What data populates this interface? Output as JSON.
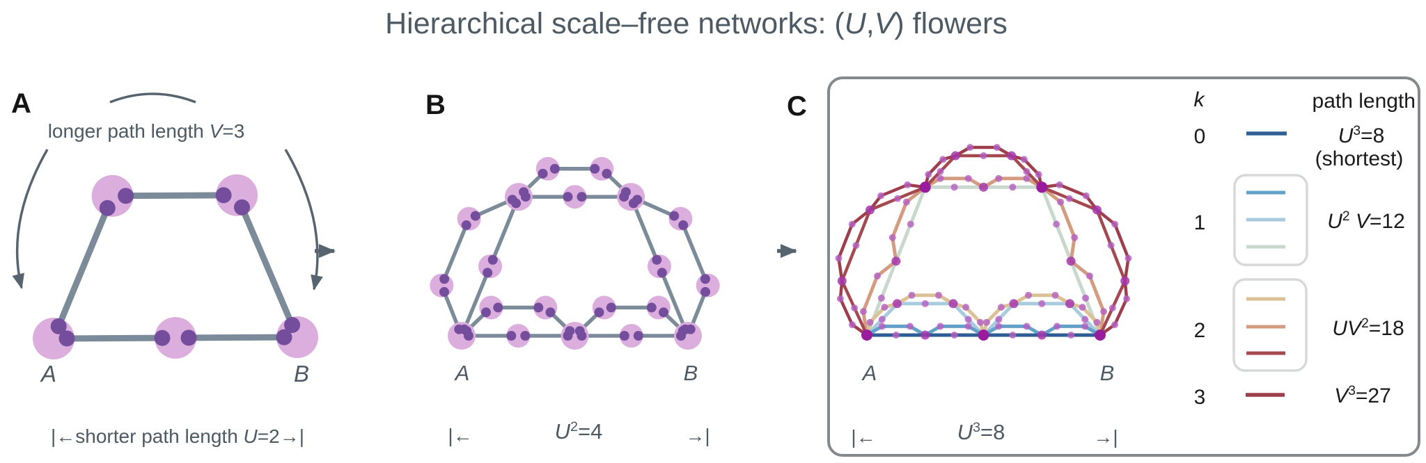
{
  "title": {
    "segments": [
      [
        "Hierarchical scale–free networks: (",
        0,
        0
      ],
      [
        "U",
        1,
        0
      ],
      [
        ",",
        0,
        0
      ],
      [
        "V",
        1,
        0
      ],
      [
        ") flowers",
        0,
        0
      ]
    ],
    "color": "#4d5963"
  },
  "panels": {
    "A": {
      "letter": "A",
      "top_label": {
        "segments": [
          [
            "longer path length ",
            0,
            0
          ],
          [
            "V",
            1,
            0
          ],
          [
            "=3",
            0,
            0
          ]
        ]
      },
      "bottom_label": {
        "segments": [
          [
            "|←shorter path length ",
            0,
            0
          ],
          [
            "U",
            1,
            0
          ],
          [
            "=2→|",
            0,
            0
          ]
        ]
      },
      "node_a": "A",
      "node_b": "B"
    },
    "B": {
      "letter": "B",
      "left_mark": "|←",
      "right_mark": "→|",
      "formula": {
        "segments": [
          [
            "U",
            1,
            0
          ],
          [
            "2",
            0,
            1
          ],
          [
            "=4",
            0,
            0
          ]
        ]
      },
      "node_a": "A",
      "node_b": "B"
    },
    "C": {
      "letter": "C",
      "left_mark": "|←",
      "right_mark": "→|",
      "formula": {
        "segments": [
          [
            "U",
            1,
            0
          ],
          [
            "3",
            0,
            1
          ],
          [
            "=8",
            0,
            0
          ]
        ]
      },
      "node_a": "A",
      "node_b": "B"
    }
  },
  "legend": {
    "col1_header": "k",
    "col2_header": "path length",
    "rows": [
      {
        "k": "0",
        "colors": [
          "#2e5e95"
        ],
        "formula": {
          "segments": [
            [
              "U",
              1,
              0
            ],
            [
              "3",
              0,
              1
            ],
            [
              "=8",
              0,
              0
            ]
          ]
        },
        "note": "(shortest)"
      },
      {
        "k": "1",
        "colors": [
          "#64a1c8",
          "#a9cbdf",
          "#c9d8cc"
        ],
        "formula": {
          "segments": [
            [
              "U",
              1,
              0
            ],
            [
              "2",
              0,
              1
            ],
            [
              " V",
              1,
              0
            ],
            [
              "=12",
              0,
              0
            ]
          ]
        }
      },
      {
        "k": "2",
        "colors": [
          "#ddc196",
          "#d39b80",
          "#a4494f"
        ],
        "formula": {
          "segments": [
            [
              "U",
              1,
              0
            ],
            [
              "V",
              1,
              0
            ],
            [
              "2",
              0,
              1
            ],
            [
              "=18",
              0,
              0
            ]
          ]
        }
      },
      {
        "k": "3",
        "colors": [
          "#9e3e4d"
        ],
        "formula": {
          "segments": [
            [
              "V",
              1,
              0
            ],
            [
              "3",
              0,
              1
            ],
            [
              "=27",
              0,
              0
            ]
          ]
        }
      }
    ],
    "text_color": "#1a1a1a",
    "box_border_color": "#d6d8da"
  },
  "style": {
    "slate_text": "#4d5963",
    "arrow_color": "#57646f",
    "panel_letter_color": "#151515",
    "panel_c_border": "#85898e"
  },
  "networks": {
    "U_value": 2,
    "V_value": 3,
    "A": {
      "a": [
        77,
        487
      ],
      "b": [
        427,
        485
      ],
      "depth": 1,
      "ts": [
        0.245
      ],
      "hs": [
        0.585
      ],
      "edge_color": "#7c8b99",
      "edge_w": 9,
      "node_color": "#dcaede",
      "node_r": 30,
      "hub_r": 30,
      "dot_color": "#744d9d",
      "dot_r": 11.5,
      "dot_off": 19
    },
    "B": {
      "a": [
        663,
        483
      ],
      "b": [
        988,
        483
      ],
      "depth": 2,
      "ts": [
        0.252,
        0.26
      ],
      "hs": [
        0.615,
        0.25
      ],
      "edge_color": "#7c8b99",
      "edge_w": 5.5,
      "node_color": "#dcaede",
      "node_r": 17,
      "hub_r": 20,
      "dot_color": "#744d9d",
      "dot_r": 7,
      "dot_off": 10
    },
    "C": {
      "a": [
        1245,
        482
      ],
      "b": [
        1580,
        482
      ],
      "ts": [
        0.25,
        0.26,
        0.26
      ],
      "hs": [
        0.635,
        0.27,
        0.15
      ],
      "paths": [
        {
          "choices": "VUU",
          "color": "#c9d8cc",
          "width": 5,
          "k": 1
        },
        {
          "choices": "VUV",
          "color": "#d39b80",
          "width": 5,
          "k": 2
        },
        {
          "choices": "UVU",
          "color": "#a9cbdf",
          "width": 5,
          "k": 1
        },
        {
          "choices": "UVV",
          "color": "#ddc196",
          "width": 5,
          "k": 2
        },
        {
          "choices": "VVU",
          "color": "#a4494f",
          "width": 4.5,
          "k": 2
        },
        {
          "choices": "VVV",
          "color": "#9e3e4d",
          "width": 4.5,
          "k": 3
        },
        {
          "choices": "UUV",
          "color": "#64a1c8",
          "width": 5,
          "k": 1
        },
        {
          "choices": "UUU",
          "color": "#2e5e95",
          "width": 5,
          "k": 0
        }
      ],
      "dots": {
        "small": {
          "r": 5,
          "color": "#b45fc0",
          "opacity": 0.8
        },
        "med": {
          "r": 6.5,
          "color": "#a637ad",
          "opacity": 0.85
        },
        "hub": {
          "r": 8,
          "color": "#991c9e",
          "opacity": 1
        }
      }
    }
  }
}
